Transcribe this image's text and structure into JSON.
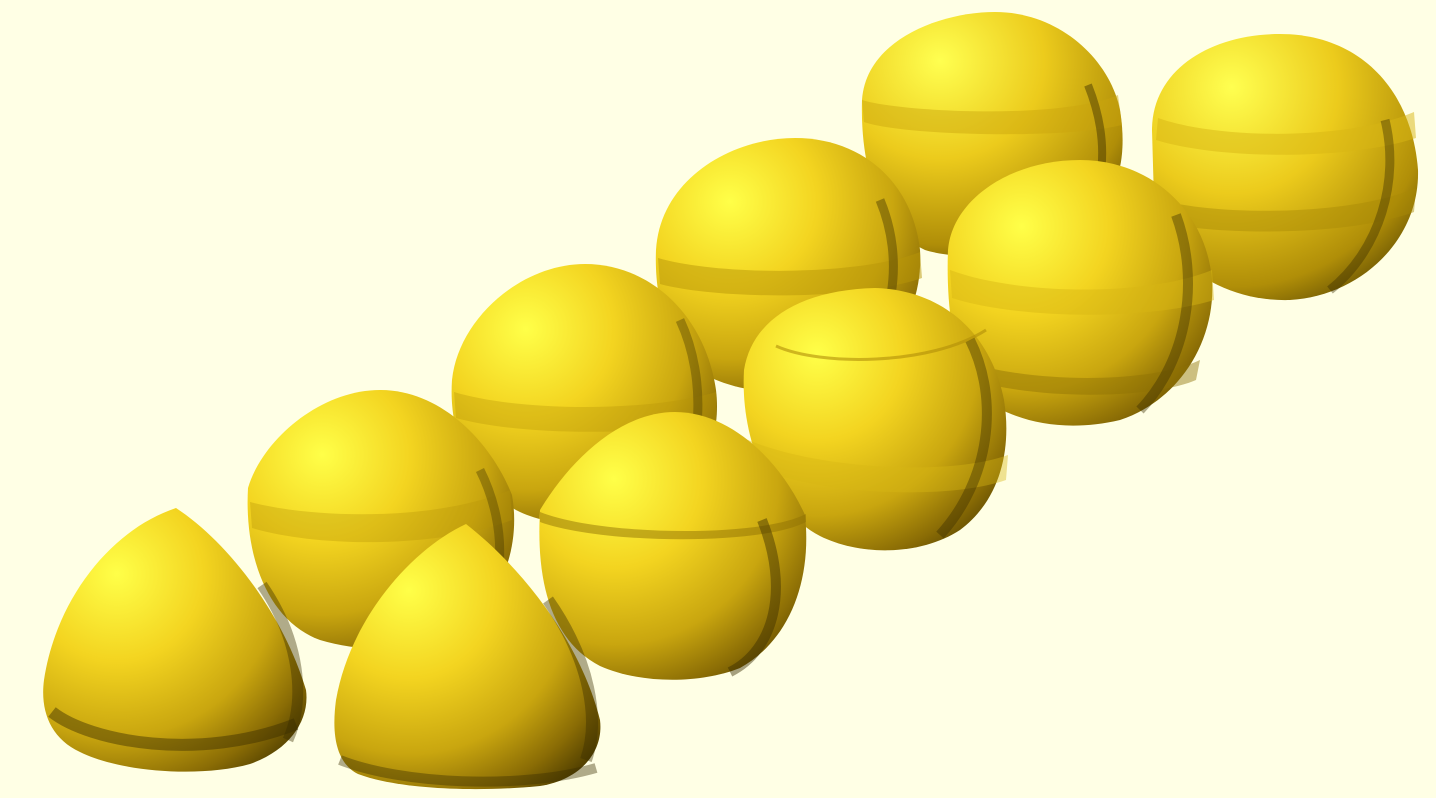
{
  "scene": {
    "background_color": "#ffffe5",
    "object_color": "#f5d41a",
    "highlight_color": "#ffff44",
    "shadow_color": "#3a2f00",
    "object_count": 10,
    "objects": [
      {
        "name": "reuleaux-solid-front-left",
        "shape": "tetra"
      },
      {
        "name": "reuleaux-solid-front-middle",
        "shape": "tetra"
      },
      {
        "name": "blend-solid-row2-a",
        "shape": "dome-cut"
      },
      {
        "name": "blend-solid-row2-b",
        "shape": "dome-cut"
      },
      {
        "name": "blend-solid-row3-a",
        "shape": "dome"
      },
      {
        "name": "blend-solid-row3-b",
        "shape": "banded"
      },
      {
        "name": "blend-solid-row4-a",
        "shape": "banded"
      },
      {
        "name": "blend-solid-row4-b",
        "shape": "banded"
      },
      {
        "name": "sphere-back-a",
        "shape": "sphere-banded"
      },
      {
        "name": "sphere-back-b",
        "shape": "sphere-banded"
      }
    ]
  }
}
